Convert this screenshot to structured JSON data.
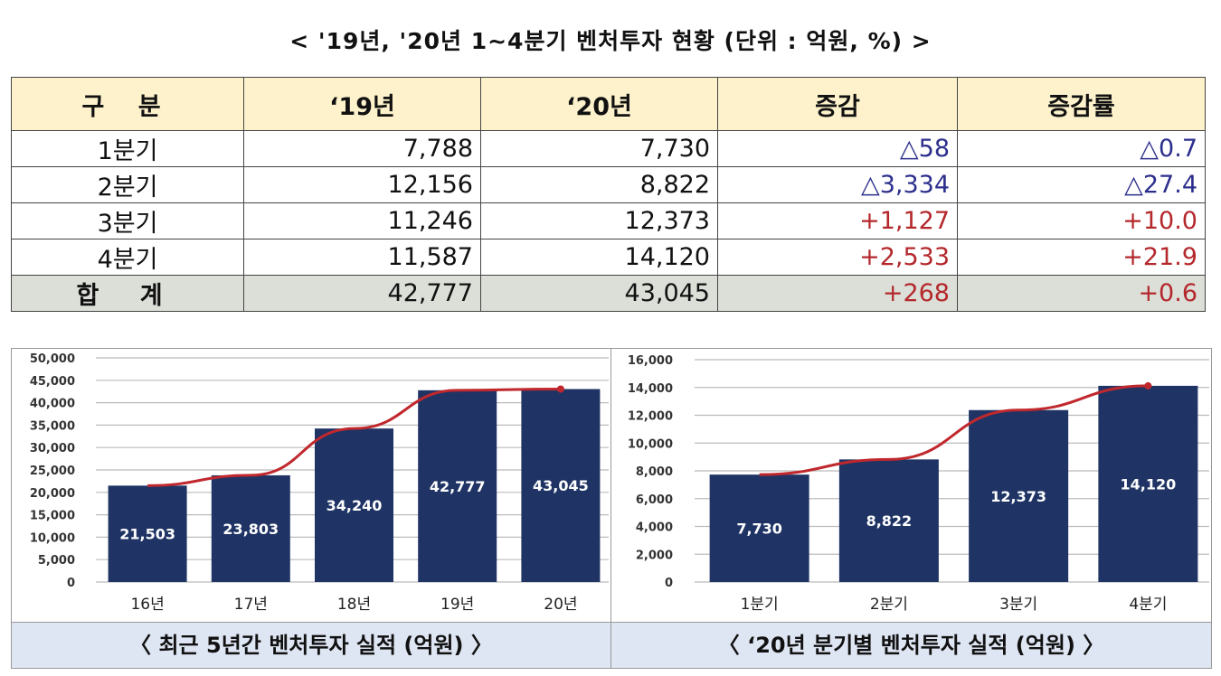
{
  "title": "< '19년, '20년 1~4분기 벤처투자 현황 (단위 : 억원, %) >",
  "table": {
    "headers": [
      "구  분",
      "‘19년",
      "‘20년",
      "증감",
      "증감률"
    ],
    "rows": [
      {
        "label": "1분기",
        "y19": "7,788",
        "y20": "7,730",
        "change": "△58",
        "rate": "△0.7",
        "sign": "neg"
      },
      {
        "label": "2분기",
        "y19": "12,156",
        "y20": "8,822",
        "change": "△3,334",
        "rate": "△27.4",
        "sign": "neg"
      },
      {
        "label": "3분기",
        "y19": "11,246",
        "y20": "12,373",
        "change": "+1,127",
        "rate": "+10.0",
        "sign": "pos"
      },
      {
        "label": "4분기",
        "y19": "11,587",
        "y20": "14,120",
        "change": "+2,533",
        "rate": "+21.9",
        "sign": "pos"
      },
      {
        "label": "합 계",
        "y19": "42,777",
        "y20": "43,045",
        "change": "+268",
        "rate": "+0.6",
        "sign": "pos"
      }
    ]
  },
  "colors": {
    "bar": "#1f3465",
    "line": "#c0282d",
    "caption_bg": "#dfe6f3",
    "header_bg": "#fdf2cc",
    "total_bg": "#dcdfd8"
  },
  "chart_data": [
    {
      "type": "bar",
      "title": "〈 최근 5년간 벤처투자 실적 (억원) 〉",
      "categories": [
        "16년",
        "17년",
        "18년",
        "19년",
        "20년"
      ],
      "values": [
        21503,
        23803,
        34240,
        42777,
        43045
      ],
      "data_labels": [
        "21,503",
        "23,803",
        "34,240",
        "42,777",
        "43,045"
      ],
      "overlay_line": true,
      "ylim": [
        0,
        50000
      ],
      "yticks": [
        "0",
        "5,000",
        "10,000",
        "15,000",
        "20,000",
        "25,000",
        "30,000",
        "35,000",
        "40,000",
        "45,000",
        "50,000"
      ],
      "grid": true
    },
    {
      "type": "bar",
      "title": "〈 ‘20년 분기별 벤처투자 실적 (억원) 〉",
      "categories": [
        "1분기",
        "2분기",
        "3분기",
        "4분기"
      ],
      "values": [
        7730,
        8822,
        12373,
        14120
      ],
      "data_labels": [
        "7,730",
        "8,822",
        "12,373",
        "14,120"
      ],
      "overlay_line": true,
      "ylim": [
        0,
        16000
      ],
      "yticks": [
        "0",
        "2,000",
        "4,000",
        "6,000",
        "8,000",
        "10,000",
        "12,000",
        "14,000",
        "16,000"
      ],
      "grid": true
    }
  ]
}
